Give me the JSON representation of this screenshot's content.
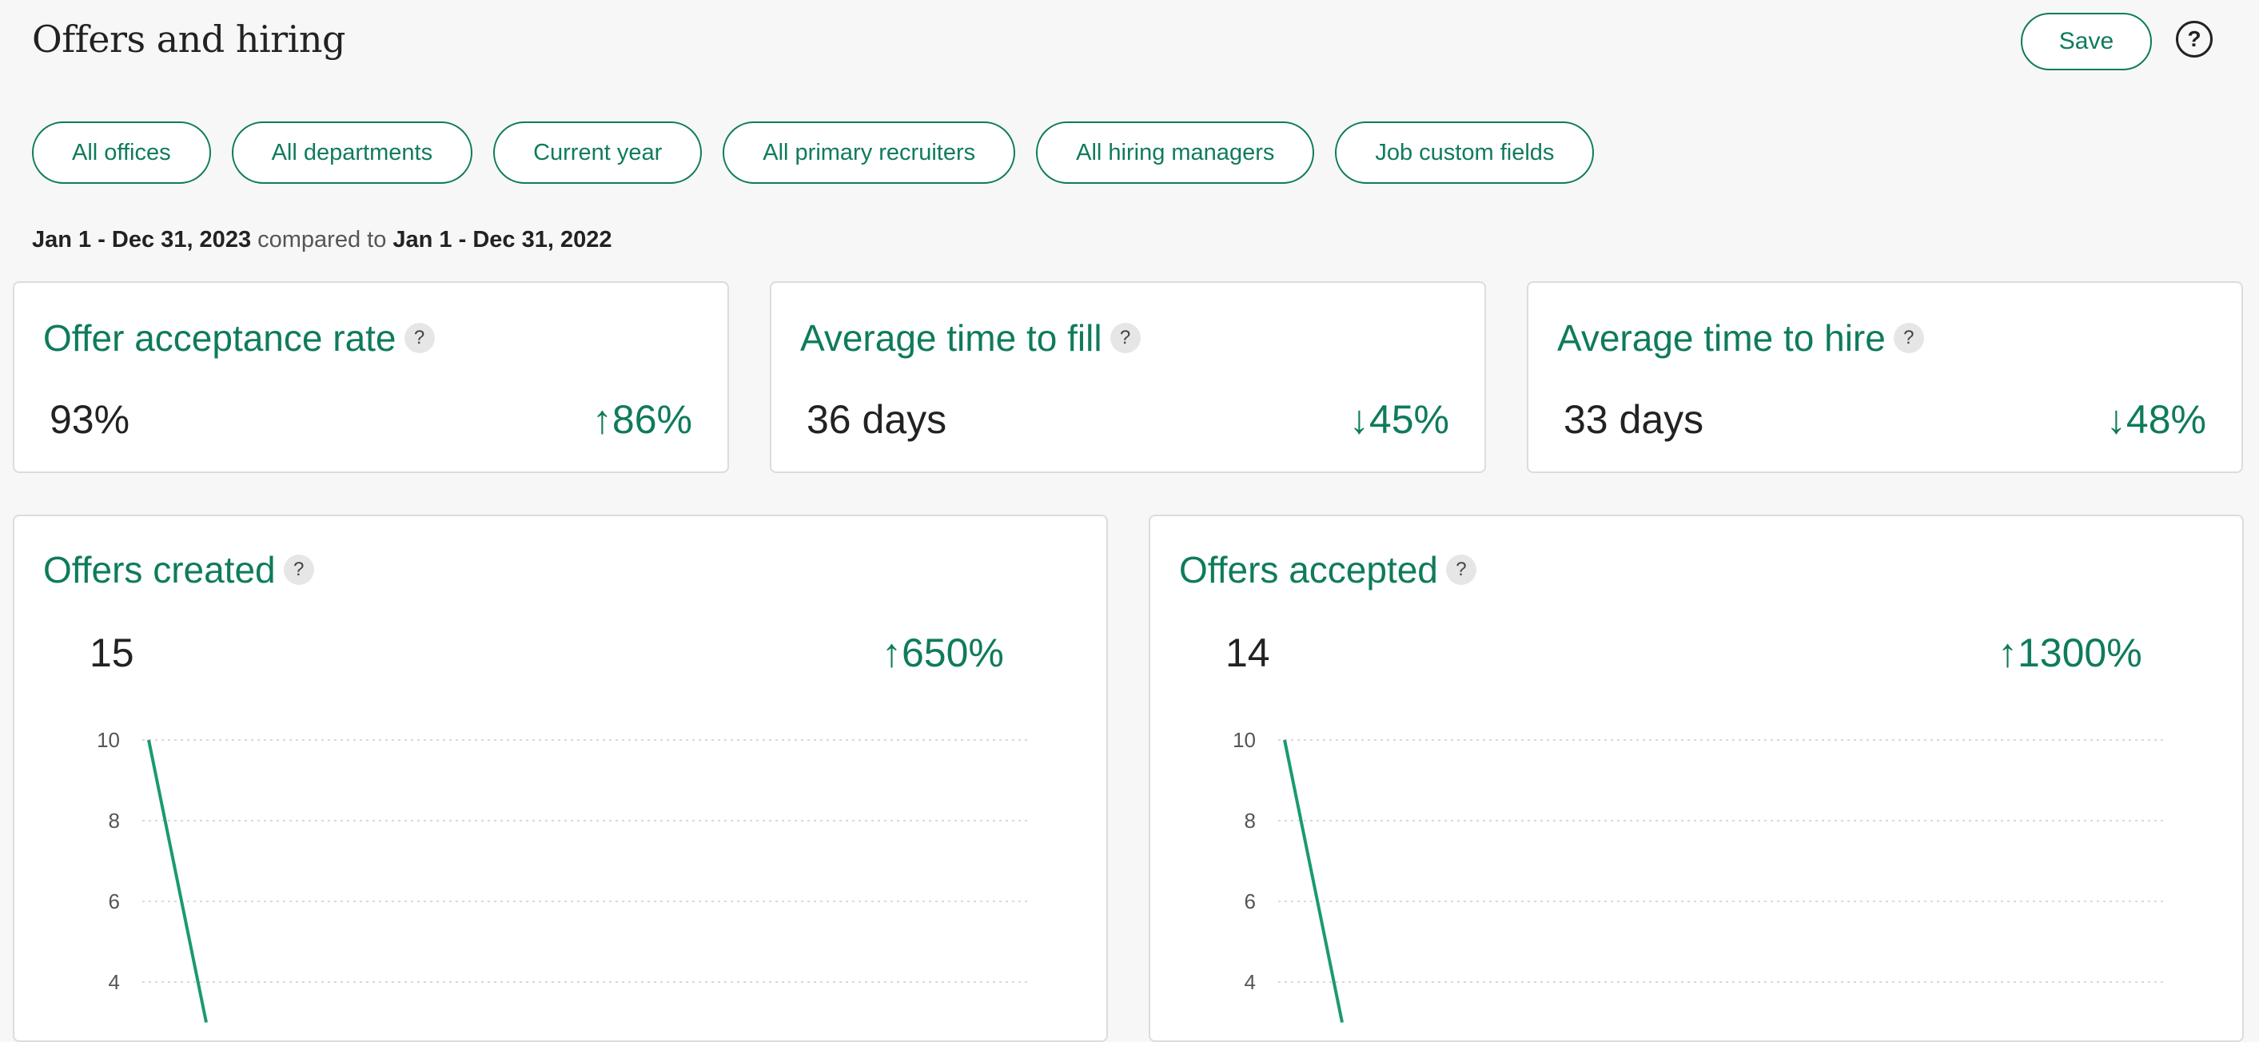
{
  "header": {
    "title": "Offers and hiring",
    "save_label": "Save",
    "help_label": "?"
  },
  "filters": [
    {
      "label": "All offices"
    },
    {
      "label": "All departments"
    },
    {
      "label": "Current year"
    },
    {
      "label": "All primary recruiters"
    },
    {
      "label": "All hiring managers"
    },
    {
      "label": "Job custom fields"
    }
  ],
  "date_range": {
    "current": "Jan 1 - Dec 31, 2023",
    "compared_label": "compared to",
    "previous": "Jan 1 - Dec 31, 2022"
  },
  "kpis": [
    {
      "title": "Offer acceptance rate",
      "value": "93%",
      "change": "86%",
      "direction": "up",
      "help": "?"
    },
    {
      "title": "Average time to fill",
      "value": "36 days",
      "change": "45%",
      "direction": "down",
      "help": "?"
    },
    {
      "title": "Average time to hire",
      "value": "33 days",
      "change": "48%",
      "direction": "down",
      "help": "?"
    }
  ],
  "charts": [
    {
      "title": "Offers created",
      "value": "15",
      "change": "650%",
      "direction": "up",
      "help": "?"
    },
    {
      "title": "Offers accepted",
      "value": "14",
      "change": "1300%",
      "direction": "up",
      "help": "?"
    }
  ],
  "arrows": {
    "up": "↑",
    "down": "↓"
  },
  "colors": {
    "accent": "#0f7b5c",
    "line": "#1a9a72",
    "grid": "#d9d9d9"
  },
  "chart_data": [
    {
      "type": "line",
      "title": "Offers created",
      "ylim": [
        0,
        10
      ],
      "yticks": [
        10,
        8,
        6,
        4
      ],
      "grid": true,
      "series": [
        {
          "values": [
            10,
            3
          ]
        }
      ]
    },
    {
      "type": "line",
      "title": "Offers accepted",
      "ylim": [
        0,
        10
      ],
      "yticks": [
        10,
        8,
        6,
        4
      ],
      "grid": true,
      "series": [
        {
          "values": [
            10,
            3
          ]
        }
      ]
    }
  ]
}
